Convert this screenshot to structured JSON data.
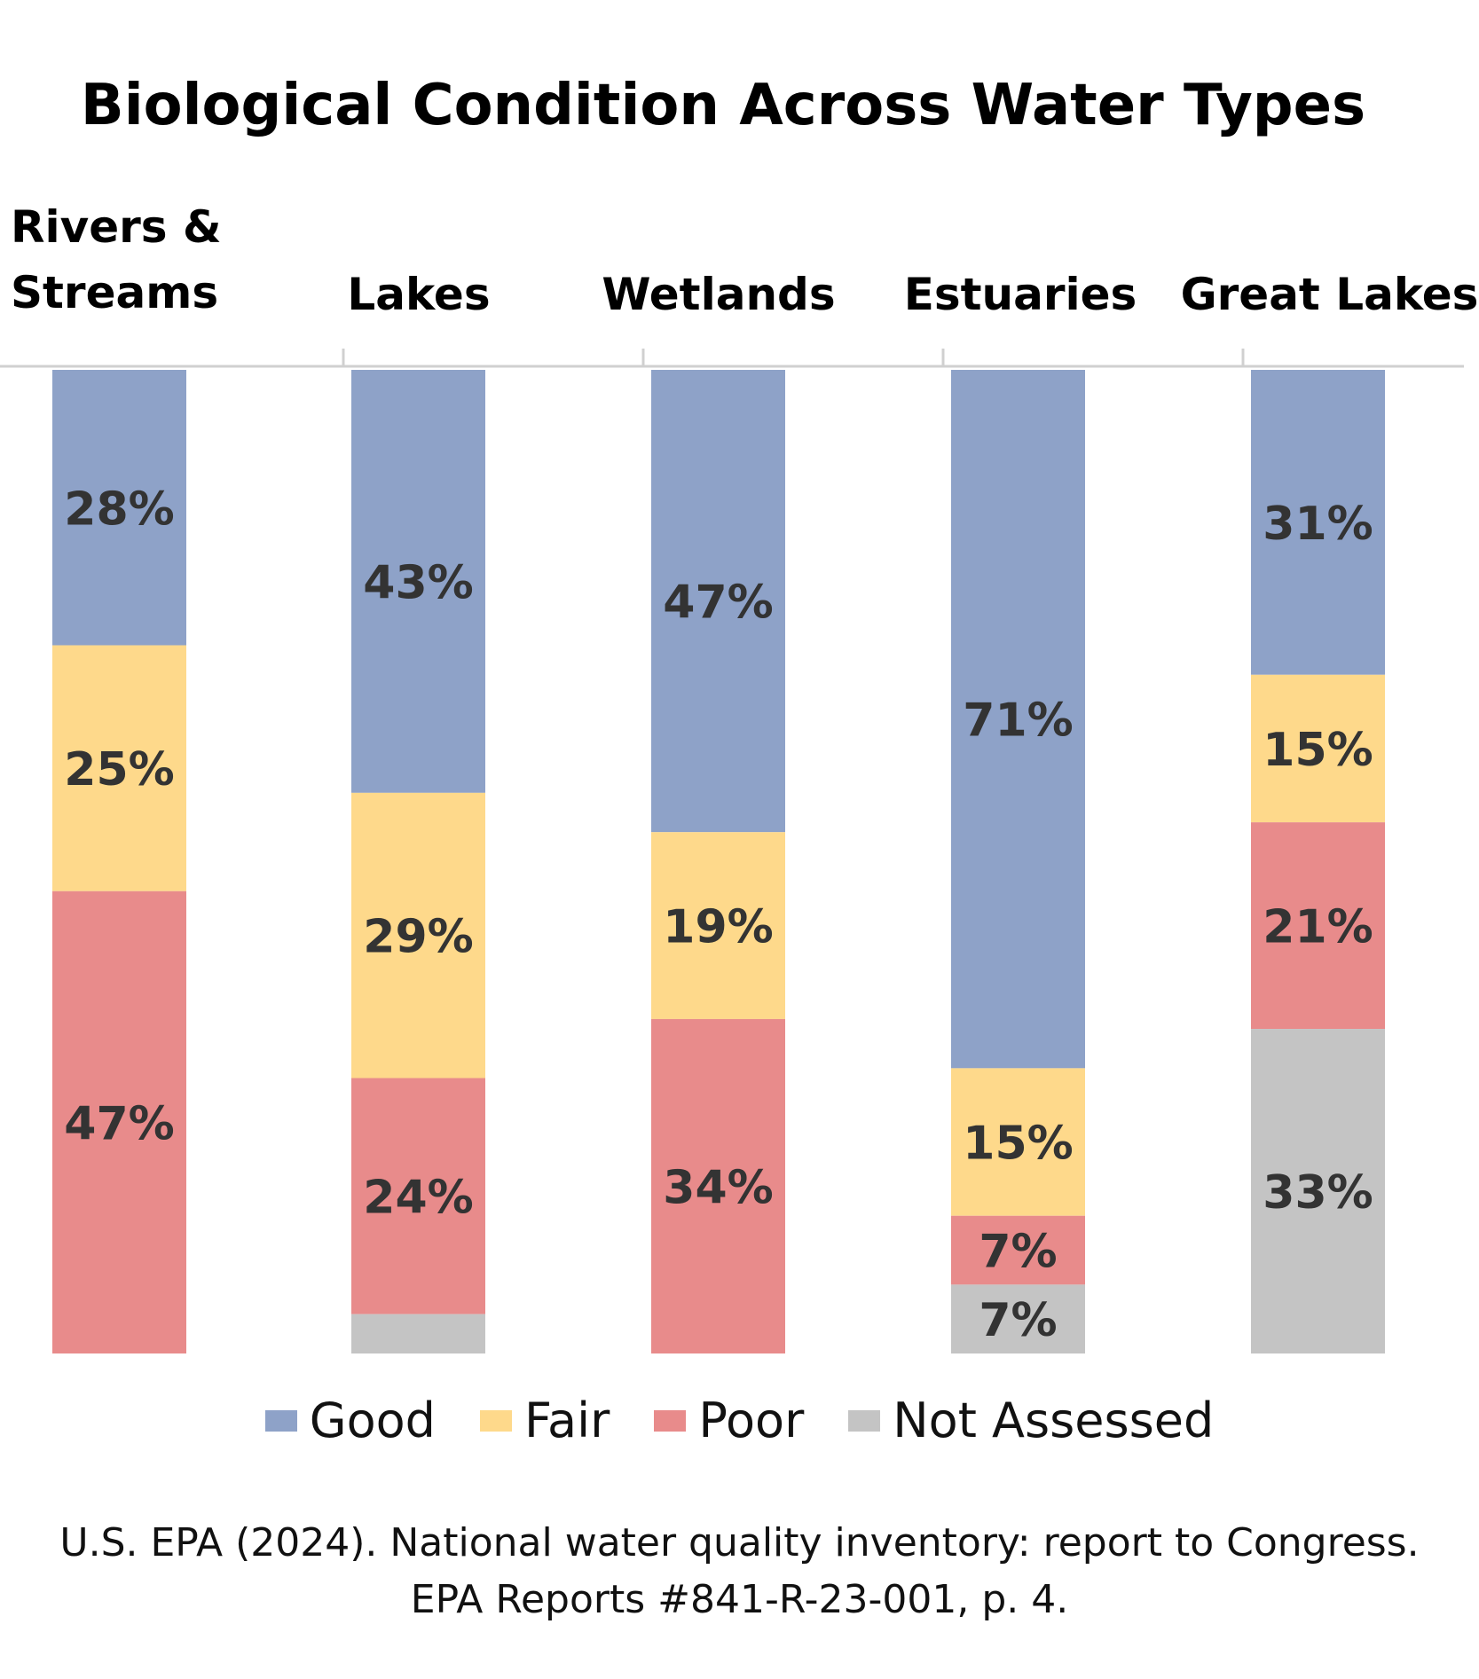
{
  "chart_data": {
    "type": "bar",
    "stacked": true,
    "orientation": "vertical",
    "title": "Biological Condition Across Water Types",
    "categories": [
      "Rivers & Streams",
      "Lakes",
      "Wetlands",
      "Estuaries",
      "Great Lakes"
    ],
    "ylim": [
      0,
      100
    ],
    "grid": false,
    "legend_position": "bottom",
    "series": [
      {
        "name": "Good",
        "color": "#8EA2C8",
        "values": [
          28,
          43,
          47,
          71,
          31
        ],
        "labels": [
          "28%",
          "43%",
          "47%",
          "71%",
          "31%"
        ]
      },
      {
        "name": "Fair",
        "color": "#FED98B",
        "values": [
          25,
          29,
          19,
          15,
          15
        ],
        "labels": [
          "25%",
          "29%",
          "19%",
          "15%",
          "15%"
        ]
      },
      {
        "name": "Poor",
        "color": "#E88B8B",
        "values": [
          47,
          24,
          34,
          7,
          21
        ],
        "labels": [
          "47%",
          "24%",
          "34%",
          "7%",
          "21%"
        ]
      },
      {
        "name": "Not Assessed",
        "color": "#C4C4C4",
        "values": [
          0,
          4,
          0,
          7,
          33
        ],
        "labels": [
          "",
          "",
          "",
          "7%",
          "33%"
        ]
      }
    ],
    "source": [
      "U.S. EPA (2024). National water quality inventory: report to Congress.",
      "EPA Reports #841-R-23-001, p. 4."
    ]
  }
}
